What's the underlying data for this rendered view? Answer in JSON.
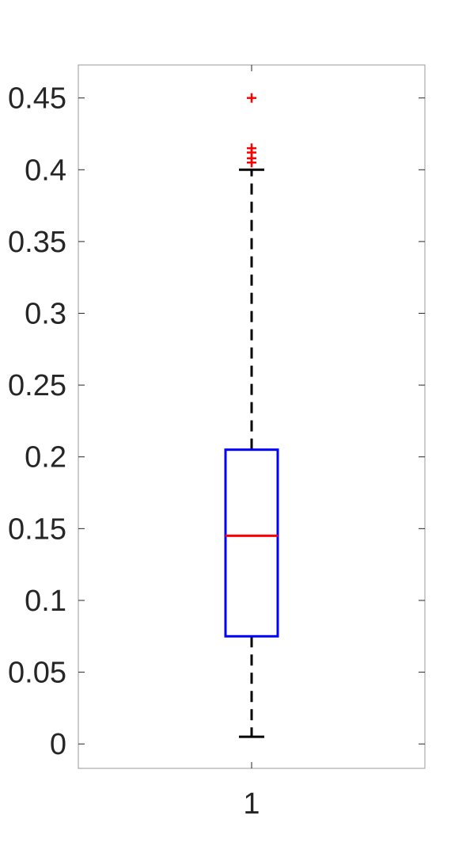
{
  "chart_data": {
    "type": "box",
    "categories": [
      "1"
    ],
    "ylim": [
      -0.017,
      0.473
    ],
    "yticks": [
      0,
      0.05,
      0.1,
      0.15,
      0.2,
      0.25,
      0.3,
      0.35,
      0.4,
      0.45
    ],
    "ytick_labels": [
      "0",
      "0.05",
      "0.1",
      "0.15",
      "0.2",
      "0.25",
      "0.3",
      "0.35",
      "0.4",
      "0.45"
    ],
    "grid": false,
    "boxes": [
      {
        "category": "1",
        "whisker_low": 0.005,
        "q1": 0.075,
        "median": 0.145,
        "q3": 0.205,
        "whisker_high": 0.4,
        "outliers": [
          0.405,
          0.408,
          0.412,
          0.415,
          0.45
        ]
      }
    ],
    "colors": {
      "box": "#0000ff",
      "median": "#ff0000",
      "whisker": "#000000",
      "outlier": "#ff0000",
      "axis": "#262626"
    }
  }
}
